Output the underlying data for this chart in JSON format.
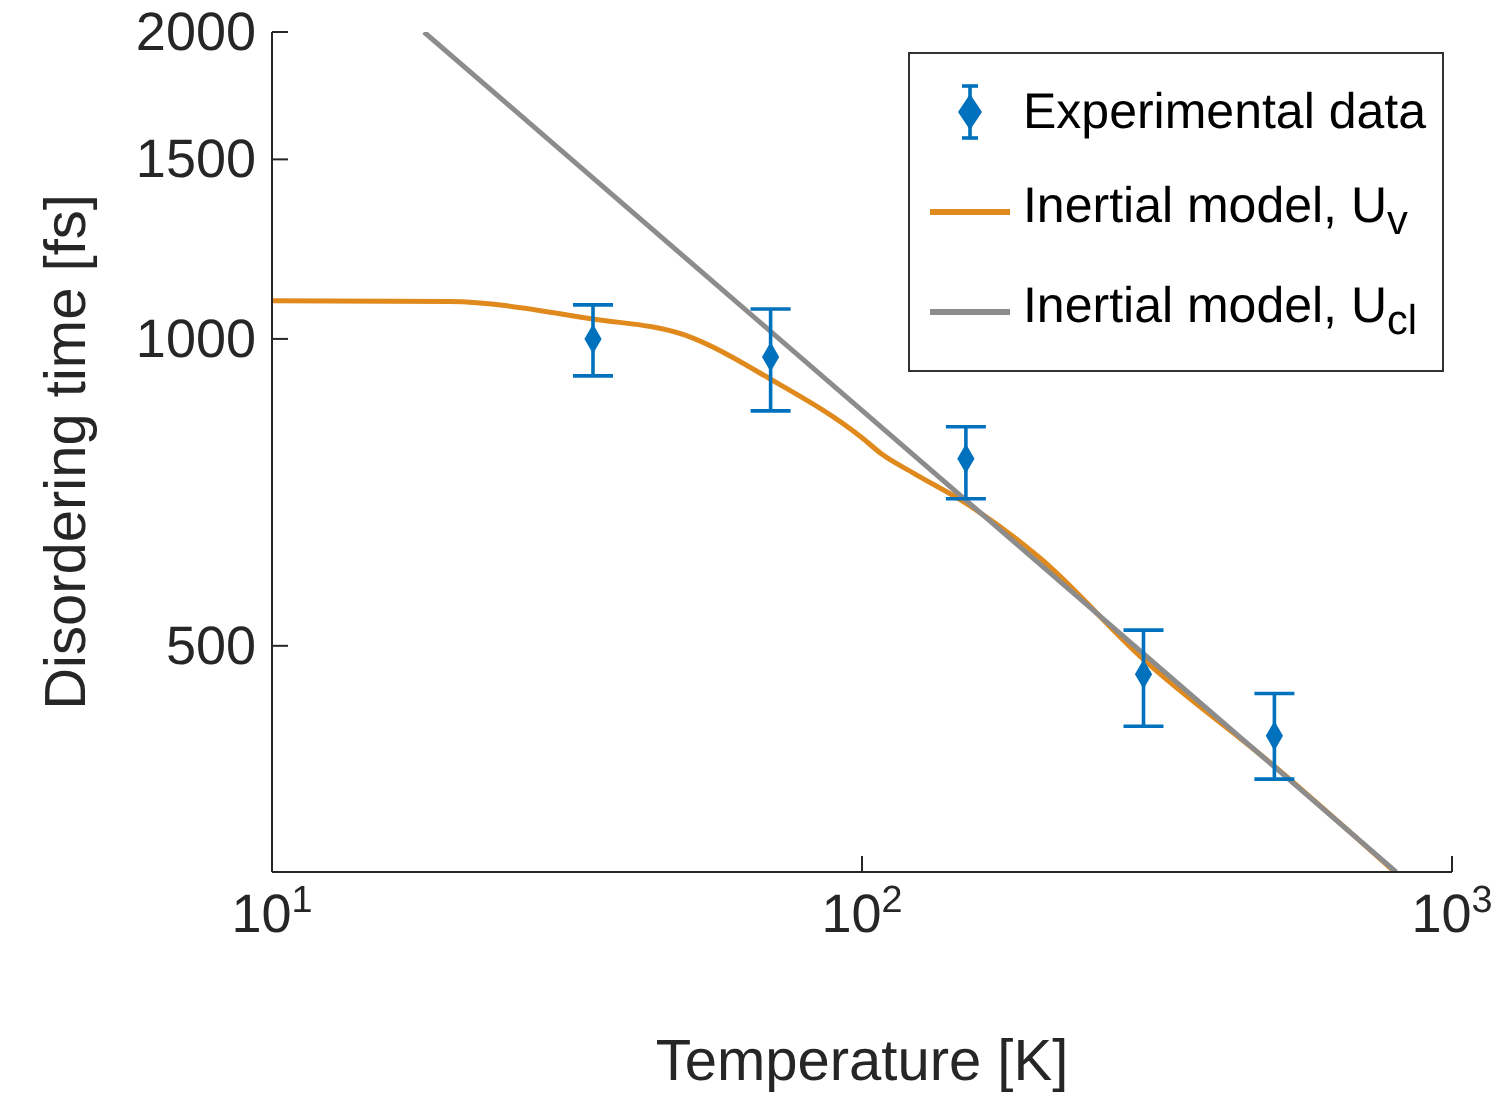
{
  "chart_data": {
    "type": "scatter",
    "xlabel": "Temperature [K]",
    "ylabel": "Disordering time [fs]",
    "log": "xy",
    "grid": false,
    "legend": "top right",
    "xlim": [
      10,
      1000
    ],
    "xticks": [
      {
        "value": 10,
        "label": "10$^{1}$"
      },
      {
        "value": 100,
        "label": "10$^{2}$"
      },
      {
        "value": 1000,
        "label": "10$^{3}$"
      }
    ],
    "ylim": [
      300,
      2000
    ],
    "yticks": [
      500,
      1000,
      1500,
      2000
    ],
    "series": [
      {
        "name": "Experimental data",
        "marker": "diamond",
        "color": "#0072bd",
        "x": [
          35,
          70,
          150,
          300,
          500
        ],
        "values": [
          1000,
          960,
          763,
          469,
          408
        ],
        "errors": [
          [
            920,
            1080
          ],
          [
            850,
            1070
          ],
          [
            697,
            820
          ],
          [
            417,
            518
          ],
          [
            370,
            449
          ]
        ]
      },
      {
        "name": "Inertial model, U$_{v}$",
        "type": "line",
        "color": "#e08a1e",
        "x": [
          10,
          20,
          35,
          50,
          70,
          100,
          108,
          122,
          150,
          200,
          300,
          500,
          800
        ],
        "values": [
          1090,
          1088,
          1046,
          1009,
          913,
          800,
          771,
          739,
          690,
          610,
          485,
          381,
          300
        ]
      },
      {
        "name": "Inertial model, U$_{cl}$",
        "type": "line",
        "color": "#8c8c8c",
        "x": [
          18.1,
          804
        ],
        "values": [
          2000,
          300
        ]
      }
    ]
  }
}
